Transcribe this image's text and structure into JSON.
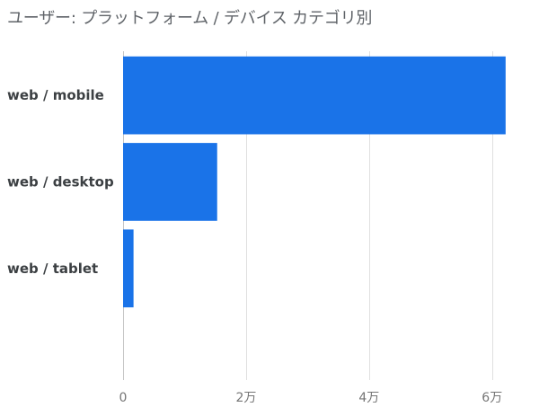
{
  "chart_data": {
    "type": "bar",
    "orientation": "horizontal",
    "title": "ユーザー: プラットフォーム / デバイス カテゴリ別",
    "categories": [
      "web / mobile",
      "web / desktop",
      "web / tablet"
    ],
    "values": [
      62200,
      15300,
      1700
    ],
    "xlim": [
      0,
      65000
    ],
    "x_ticks": [
      0,
      20000,
      40000,
      60000
    ],
    "x_tick_labels": [
      "0",
      "2万",
      "4万",
      "6万"
    ],
    "bar_color": "#1a73e8",
    "grid": true,
    "xlabel": "",
    "ylabel": ""
  }
}
